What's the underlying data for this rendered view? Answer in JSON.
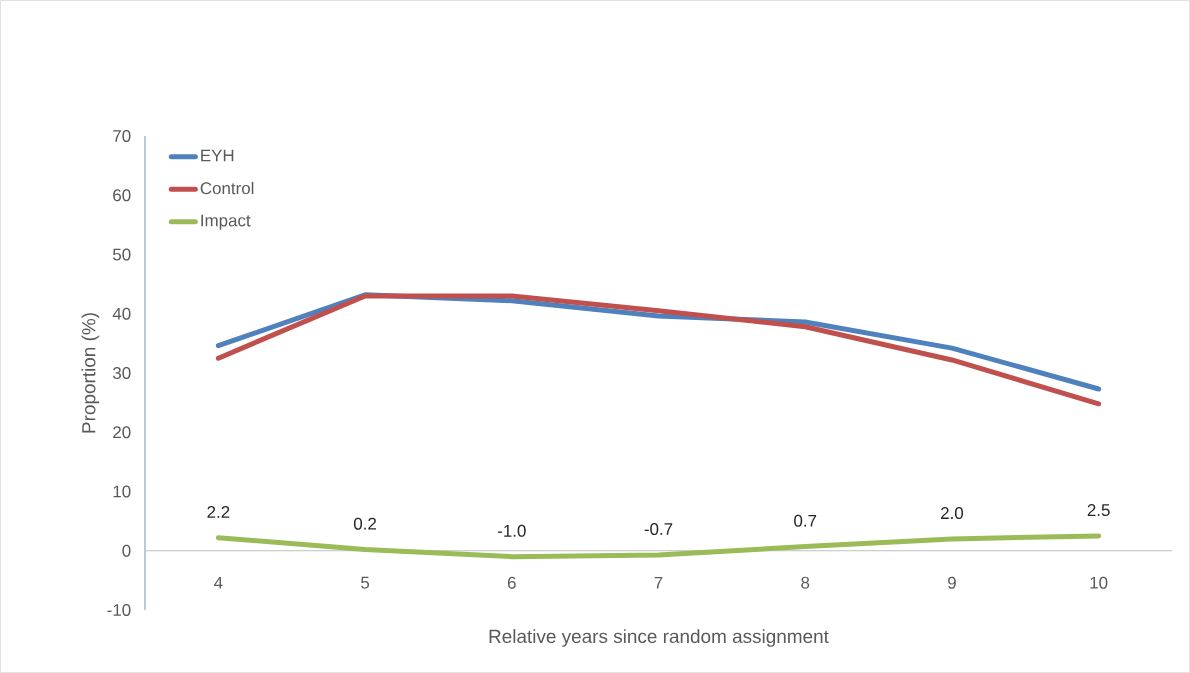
{
  "chart_data": {
    "type": "line",
    "xlabel": "Relative years since random assignment",
    "ylabel": "Proportion (%)",
    "categories": [
      "4",
      "5",
      "6",
      "7",
      "8",
      "9",
      "10"
    ],
    "series": [
      {
        "name": "EYH",
        "color": "#4f81bd",
        "values": [
          34.6,
          43.2,
          42.2,
          39.6,
          38.6,
          34.2,
          27.3
        ]
      },
      {
        "name": "Control",
        "color": "#c0504d",
        "values": [
          32.5,
          43.0,
          43.0,
          40.5,
          37.8,
          32.2,
          24.8
        ]
      },
      {
        "name": "Impact",
        "color": "#9bbb59",
        "values": [
          2.2,
          0.2,
          -1.0,
          -0.7,
          0.7,
          2.0,
          2.5
        ],
        "value_labels": [
          "2.2",
          "0.2",
          "-1.0",
          "-0.7",
          "0.7",
          "2.0",
          "2.5"
        ]
      }
    ],
    "ylim": [
      -10,
      70
    ],
    "yticks": [
      -10,
      0,
      10,
      20,
      30,
      40,
      50,
      60,
      70
    ],
    "grid": false,
    "legend": "top left",
    "marker": "none",
    "line_style": "solid"
  }
}
